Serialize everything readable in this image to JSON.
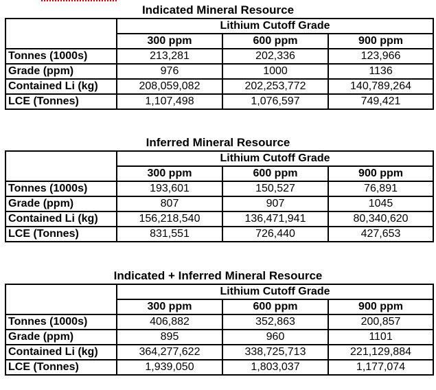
{
  "cutoff_header": "Lithium Cutoff Grade",
  "columns": [
    "300 ppm",
    "600 ppm",
    "900 ppm"
  ],
  "tables": [
    {
      "title": "Indicated Mineral Resource",
      "rows": [
        {
          "label": "Tonnes (1000s)",
          "values": [
            "213,281",
            "202,336",
            "123,966"
          ]
        },
        {
          "label": "Grade (ppm)",
          "values": [
            "976",
            "1000",
            "1136"
          ]
        },
        {
          "label": "Contained Li (kg)",
          "values": [
            "208,059,082",
            "202,253,772",
            "140,789,264"
          ]
        },
        {
          "label": "LCE (Tonnes)",
          "values": [
            "1,107,498",
            "1,076,597",
            "749,421"
          ]
        }
      ]
    },
    {
      "title": "Inferred Mineral Resource",
      "rows": [
        {
          "label": "Tonnes (1000s)",
          "values": [
            "193,601",
            "150,527",
            "76,891"
          ]
        },
        {
          "label": "Grade (ppm)",
          "values": [
            "807",
            "907",
            "1045"
          ]
        },
        {
          "label": "Contained Li (kg)",
          "values": [
            "156,218,540",
            "136,471,941",
            "80,340,620"
          ]
        },
        {
          "label": "LCE (Tonnes)",
          "values": [
            "831,551",
            "726,440",
            "427,653"
          ]
        }
      ]
    },
    {
      "title": "Indicated + Inferred Mineral Resource",
      "rows": [
        {
          "label": "Tonnes (1000s)",
          "values": [
            "406,882",
            "352,863",
            "200,857"
          ]
        },
        {
          "label": "Grade (ppm)",
          "values": [
            "895",
            "960",
            "1101"
          ]
        },
        {
          "label": "Contained Li (kg)",
          "values": [
            "364,277,622",
            "338,725,713",
            "221,129,884"
          ]
        },
        {
          "label": "LCE (Tonnes)",
          "values": [
            "1,939,050",
            "1,803,037",
            "1,177,074"
          ]
        }
      ]
    }
  ]
}
